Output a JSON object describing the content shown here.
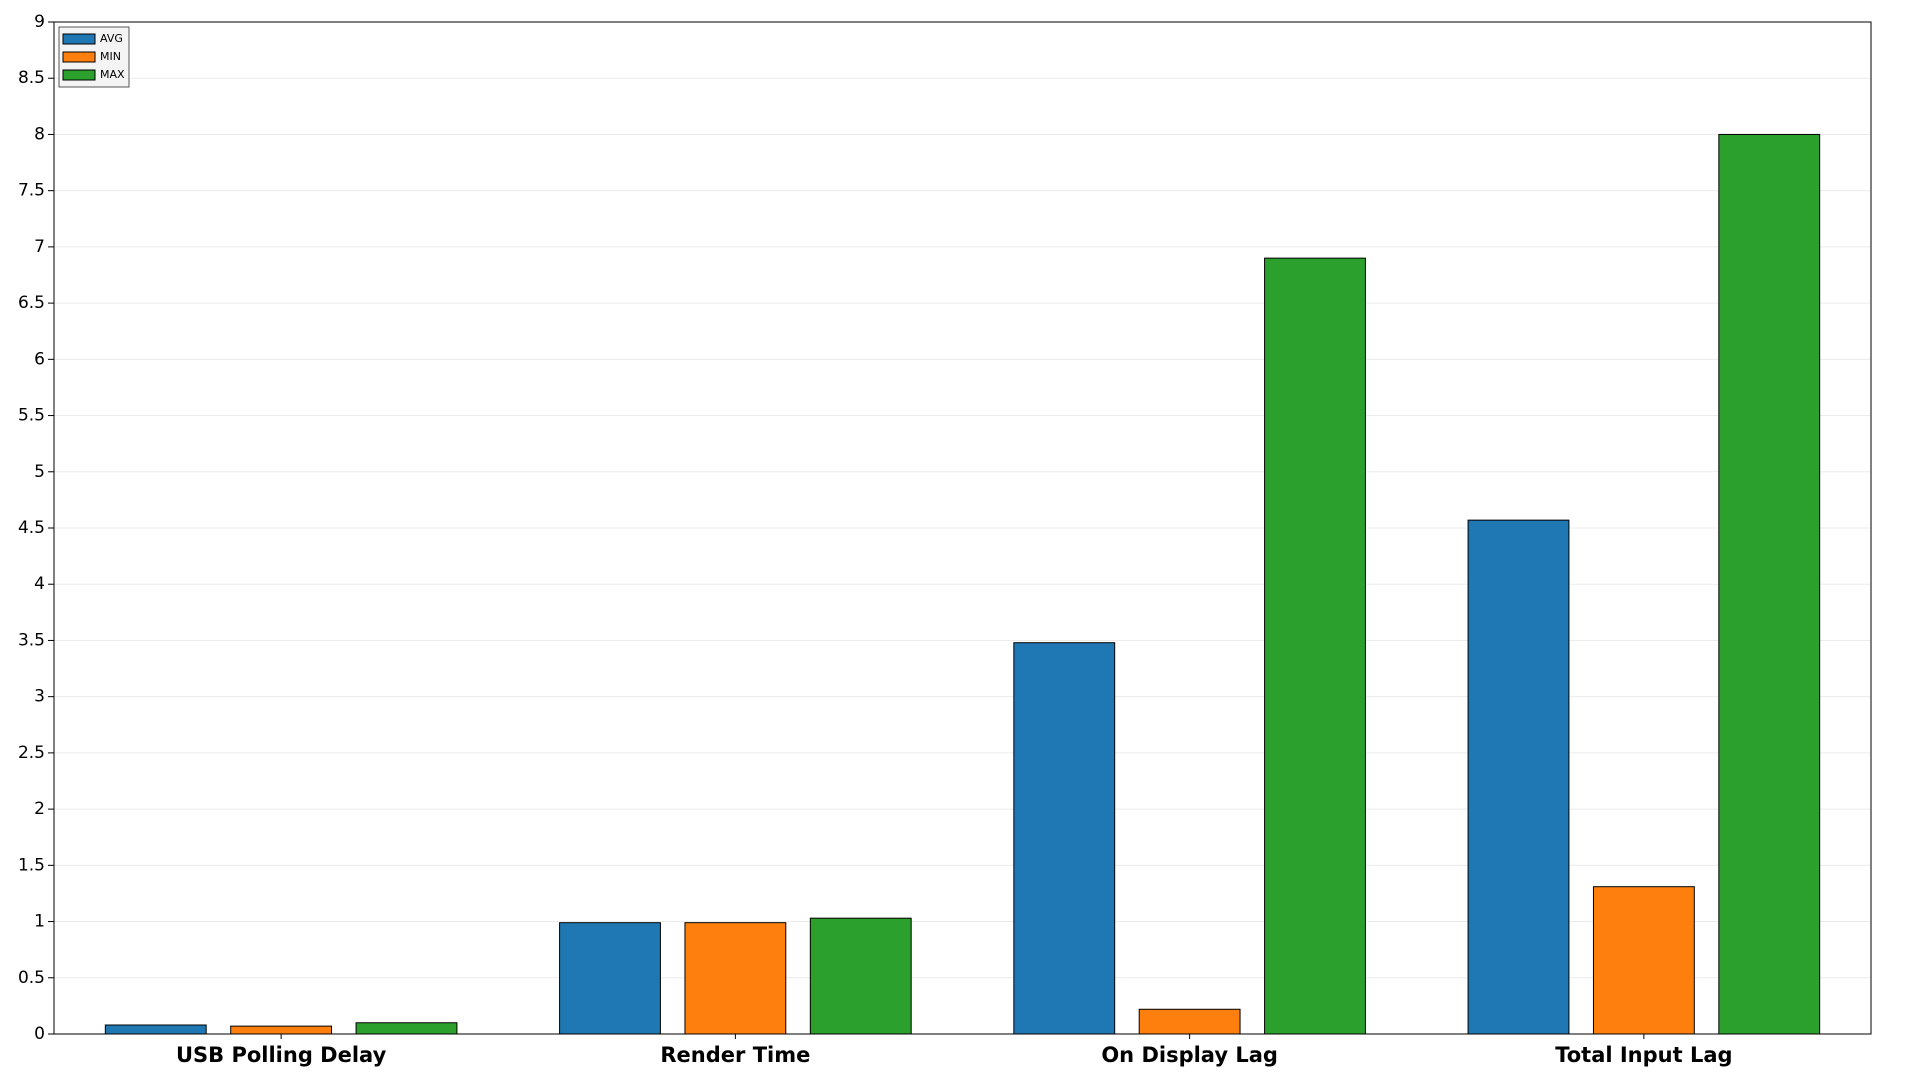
{
  "chart_data": {
    "type": "bar",
    "categories": [
      "USB Polling Delay",
      "Render Time",
      "On Display Lag",
      "Total Input Lag"
    ],
    "series": [
      {
        "name": "AVG",
        "color": "#1f77b4",
        "values": [
          0.08,
          0.99,
          3.48,
          4.57
        ]
      },
      {
        "name": "MIN",
        "color": "#ff7f0e",
        "values": [
          0.07,
          0.99,
          0.22,
          1.31
        ]
      },
      {
        "name": "MAX",
        "color": "#2ca02c",
        "values": [
          0.1,
          1.03,
          6.9,
          8.0
        ]
      }
    ],
    "ylim": [
      0,
      9
    ],
    "yticks": [
      0,
      0.5,
      1,
      1.5,
      2,
      2.5,
      3,
      3.5,
      4,
      4.5,
      5,
      5.5,
      6,
      6.5,
      7,
      7.5,
      8,
      8.5,
      9
    ],
    "grid": true,
    "legend": "upper-left"
  }
}
